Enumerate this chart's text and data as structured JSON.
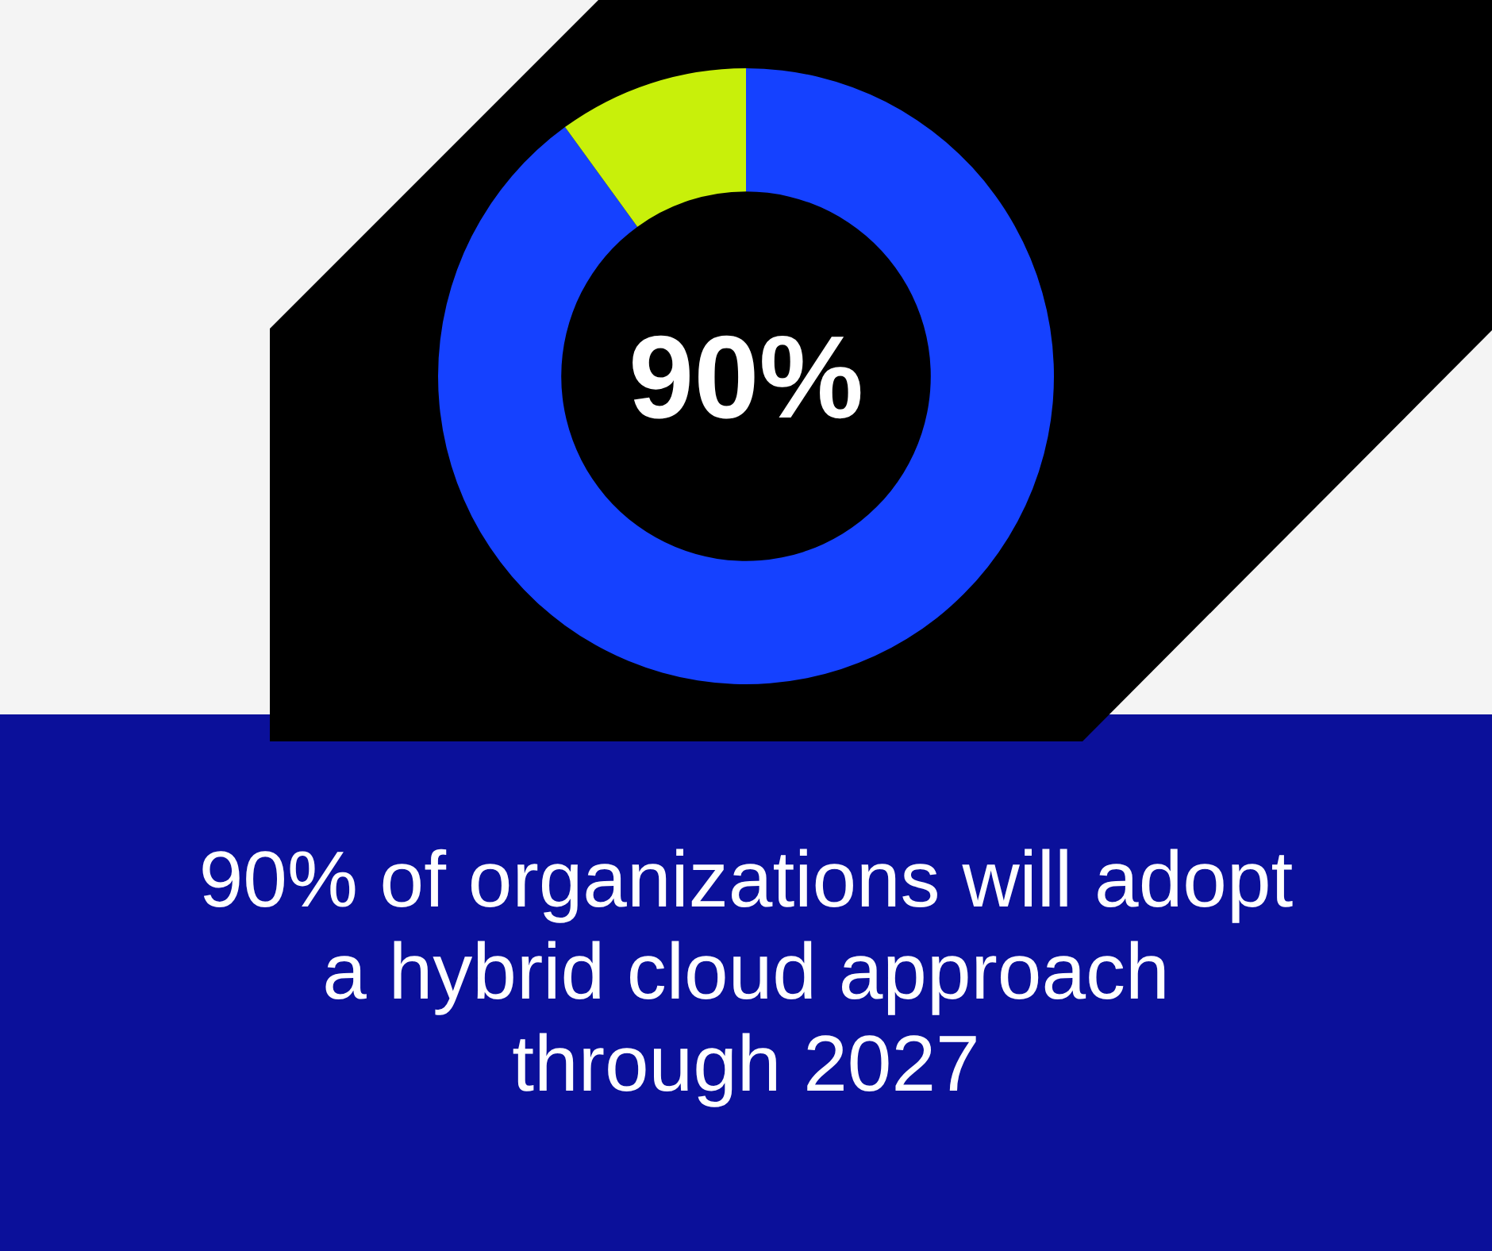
{
  "chart_data": {
    "type": "donut",
    "title": "90% of organizations will adopt a hybrid cloud approach through 2027",
    "categories": [
      null,
      null
    ],
    "values": [
      90,
      10
    ],
    "colors": [
      "#1541ff",
      "#c8f00a"
    ],
    "value_labels": [
      "90%",
      null
    ]
  }
}
